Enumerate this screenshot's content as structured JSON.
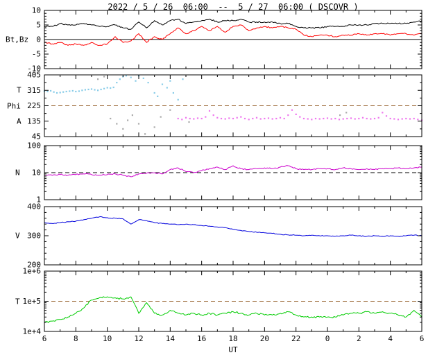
{
  "chart_data": {
    "type": "line",
    "title": "2022 / 5 / 26  06:00  --  5 / 27  06:00 ( DSCOVR )",
    "source": "DSCOVR",
    "x": {
      "label": "UT",
      "range": [
        6,
        30
      ],
      "ticks": [
        6,
        8,
        10,
        12,
        14,
        16,
        18,
        20,
        22,
        24,
        26,
        28,
        30
      ],
      "tick_labels": [
        "6",
        "8",
        "10",
        "12",
        "14",
        "16",
        "18",
        "20",
        "22",
        "0",
        "2",
        "4",
        "6"
      ]
    },
    "panels": [
      {
        "id": "bt_bz",
        "label": "Bt,Bz",
        "scale": "linear",
        "ylim": [
          -10,
          10
        ],
        "yticks": [
          -10,
          -5,
          0,
          5,
          10
        ],
        "yminor_step": 1,
        "hlines": [
          {
            "y": 0,
            "style": "solid",
            "color": "#000000"
          }
        ],
        "series": [
          {
            "name": "Bt",
            "color": "#000000",
            "noise": 0.45,
            "x_grid": {
              "start": 6,
              "step": 0.5
            },
            "y": [
              4.5,
              4.5,
              5.5,
              5.0,
              5.0,
              5.5,
              5.0,
              4.5,
              4.5,
              5.0,
              4.0,
              3.5,
              6.0,
              4.0,
              6.5,
              5.0,
              6.5,
              7.0,
              5.5,
              6.0,
              6.5,
              7.0,
              6.0,
              6.5,
              6.5,
              7.0,
              6.0,
              6.0,
              6.0,
              6.0,
              5.5,
              5.5,
              4.5,
              4.0,
              4.0,
              4.0,
              4.5,
              4.5,
              4.5,
              5.0,
              5.0,
              5.0,
              5.5,
              5.5,
              5.5,
              5.5,
              5.5,
              6.0,
              6.5
            ]
          },
          {
            "name": "Bz",
            "color": "#ff0000",
            "noise": 0.4,
            "x_grid": {
              "start": 6,
              "step": 0.5
            },
            "y": [
              -1.0,
              -1.5,
              -1.0,
              -2.0,
              -1.5,
              -2.0,
              -1.0,
              -2.0,
              -1.5,
              1.0,
              -1.0,
              -0.5,
              2.0,
              -1.0,
              1.0,
              0.0,
              2.0,
              4.0,
              2.0,
              3.0,
              4.5,
              3.0,
              4.5,
              2.5,
              4.5,
              5.0,
              3.0,
              4.0,
              4.5,
              4.0,
              4.5,
              4.0,
              3.5,
              1.5,
              1.0,
              1.5,
              1.5,
              1.0,
              1.5,
              1.5,
              2.0,
              1.5,
              2.0,
              2.0,
              1.5,
              2.0,
              2.0,
              1.5,
              2.0
            ]
          }
        ]
      },
      {
        "id": "phi",
        "label": "Phi",
        "side_labels": [
          {
            "text": "T",
            "value": 315
          },
          {
            "text": "A",
            "value": 135
          }
        ],
        "scale": "linear",
        "ylim": [
          45,
          405
        ],
        "yticks": [
          45,
          135,
          225,
          315,
          405
        ],
        "yminor_step": 45,
        "hlines": [
          {
            "y": 225,
            "style": "dashed",
            "color": "#996633"
          }
        ],
        "series": [
          {
            "name": "phi-toward",
            "type": "scatter",
            "color": "#88cce8",
            "x": [
              6.0,
              6.2,
              6.4,
              6.6,
              6.8,
              7.0,
              7.2,
              7.4,
              7.6,
              7.8,
              8.0,
              8.2,
              8.4,
              8.6,
              8.8,
              9.0,
              9.2,
              9.4,
              9.6,
              9.8,
              10.0,
              10.2,
              10.4,
              10.6,
              10.8,
              11.0,
              11.2,
              11.5,
              11.8,
              12.0,
              12.3,
              12.6,
              13.0,
              13.2,
              13.5,
              13.8,
              14.0,
              14.2,
              14.5,
              14.8
            ],
            "y": [
              310,
              308,
              312,
              305,
              300,
              302,
              305,
              308,
              310,
              312,
              308,
              310,
              315,
              318,
              320,
              322,
              318,
              315,
              320,
              325,
              330,
              328,
              332,
              360,
              380,
              395,
              400,
              390,
              370,
              400,
              385,
              360,
              300,
              280,
              350,
              330,
              370,
              300,
              260,
              380
            ]
          },
          {
            "name": "phi-intermediate",
            "type": "scatter",
            "color": "#aaaaaa",
            "x": [
              9.4,
              9.8,
              10.2,
              10.6,
              11.0,
              11.3,
              11.6,
              12.0,
              12.4,
              13.0,
              13.4,
              14.0,
              15.2,
              24.8,
              25.2
            ],
            "y": [
              380,
              395,
              150,
              120,
              90,
              140,
              170,
              120,
              60,
              100,
              160,
              200,
              130,
              170,
              185
            ]
          },
          {
            "name": "phi-away",
            "type": "scatter",
            "color": "#ee77ee",
            "x_grid": {
              "start": 14.5,
              "step": 0.25
            },
            "y": [
              150,
              145,
              155,
              150,
              148,
              152,
              150,
              160,
              195,
              170,
              155,
              150,
              148,
              152,
              150,
              155,
              160,
              150,
              145,
              150,
              155,
              148,
              150,
              152,
              148,
              150,
              155,
              150,
              170,
              200,
              175,
              160,
              150,
              148,
              145,
              150,
              148,
              150,
              152,
              148,
              150,
              145,
              148,
              150,
              152,
              148,
              150,
              155,
              150,
              148,
              150,
              155,
              185,
              165,
              150,
              148,
              145,
              148,
              150,
              148,
              150,
              145,
              140
            ]
          }
        ]
      },
      {
        "id": "n",
        "label": "N",
        "scale": "log",
        "ylim": [
          1,
          100
        ],
        "yticks": [
          1,
          10,
          100
        ],
        "yminor": "log",
        "hlines": [
          {
            "y": 10,
            "style": "dashed",
            "color": "#000000"
          }
        ],
        "series": [
          {
            "name": "N",
            "color": "#cc00cc",
            "noise": 0.045,
            "x_grid": {
              "start": 6,
              "step": 0.5
            },
            "y": [
              8,
              8,
              8.5,
              8,
              8.5,
              9,
              8.5,
              8,
              8.5,
              9,
              8,
              7,
              9,
              9.5,
              10,
              9,
              13,
              15,
              11,
              10,
              12,
              14,
              16,
              13,
              18,
              14,
              13,
              14,
              15,
              14,
              16,
              18,
              14,
              13,
              13,
              14,
              14,
              13,
              15,
              14,
              13,
              14,
              13,
              14,
              14,
              15,
              14,
              15,
              16
            ]
          }
        ]
      },
      {
        "id": "v",
        "label": "V",
        "scale": "linear",
        "ylim": [
          200,
          400
        ],
        "yticks": [
          200,
          300,
          400
        ],
        "yminor_step": 20,
        "hlines": [],
        "series": [
          {
            "name": "V",
            "color": "#0000dd",
            "noise": 2.5,
            "x_grid": {
              "start": 6,
              "step": 0.5
            },
            "y": [
              345,
              342,
              345,
              348,
              350,
              355,
              360,
              365,
              362,
              360,
              358,
              340,
              355,
              352,
              345,
              342,
              340,
              338,
              340,
              338,
              335,
              333,
              330,
              328,
              322,
              318,
              315,
              312,
              310,
              308,
              305,
              303,
              302,
              300,
              302,
              300,
              300,
              298,
              300,
              302,
              300,
              298,
              300,
              298,
              300,
              298,
              300,
              302,
              300
            ]
          }
        ]
      },
      {
        "id": "t",
        "label": "T",
        "scale": "log",
        "ylim": [
          10000,
          1000000
        ],
        "yticks": [
          10000,
          100000,
          1000000
        ],
        "ytick_labels": [
          "1e+4",
          "1e+5",
          "1e+6"
        ],
        "yminor": "log",
        "hlines": [
          {
            "y": 100000,
            "style": "dashed",
            "color": "#996633"
          }
        ],
        "series": [
          {
            "name": "T",
            "color": "#00cc00",
            "noise": 0.06,
            "x_grid": {
              "start": 6,
              "step": 0.5
            },
            "y": [
              20000,
              22000,
              25000,
              30000,
              40000,
              60000,
              110000,
              130000,
              140000,
              130000,
              120000,
              140000,
              40000,
              90000,
              40000,
              35000,
              50000,
              40000,
              35000,
              40000,
              35000,
              40000,
              35000,
              40000,
              45000,
              40000,
              35000,
              40000,
              35000,
              35000,
              40000,
              45000,
              35000,
              30000,
              30000,
              30000,
              30000,
              30000,
              35000,
              40000,
              40000,
              45000,
              40000,
              45000,
              40000,
              35000,
              30000,
              50000,
              30000
            ]
          }
        ]
      }
    ]
  }
}
